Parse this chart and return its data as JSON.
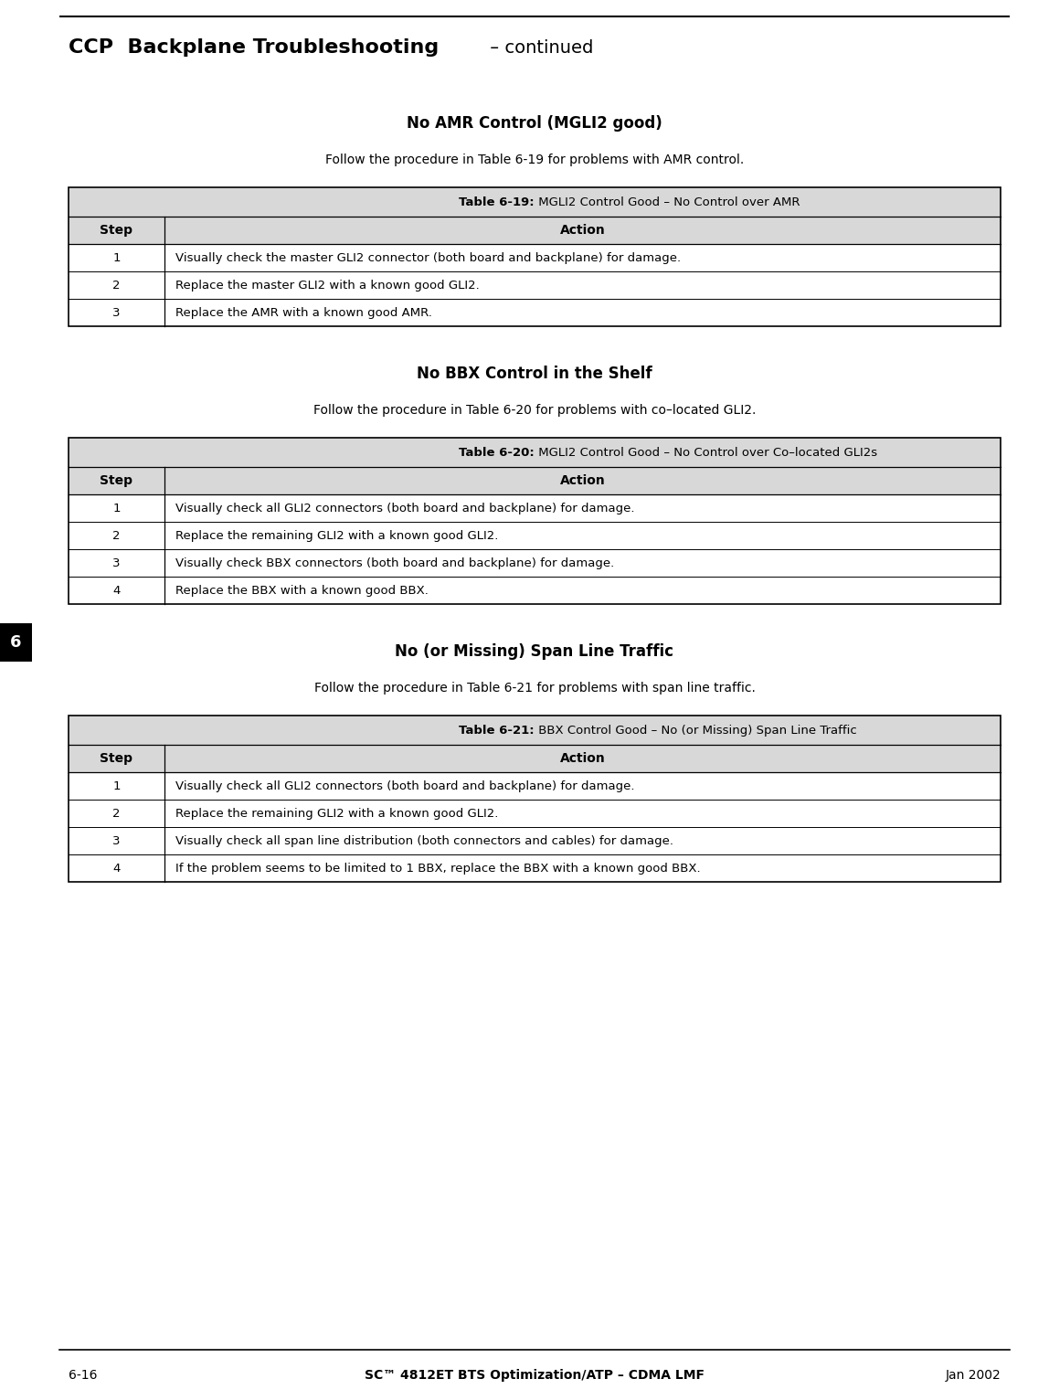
{
  "page_title_bold": "CCP  Backplane Troubleshooting",
  "page_title_normal": " – continued",
  "page_number": "6-16",
  "footer_center": "SC™ 4812ET BTS Optimization/ATP – CDMA LMF",
  "footer_right": "Jan 2002",
  "side_marker_number": "6",
  "section1_title": "No AMR Control (MGLI2 good)",
  "section1_intro": "Follow the procedure in Table 6-19 for problems with AMR control.",
  "table1_title_bold": "Table 6-19:",
  "table1_title_normal": " MGLI2 Control Good – No Control over AMR",
  "table1_col1_header": "Step",
  "table1_col2_header": "Action",
  "table1_rows": [
    [
      "1",
      "Visually check the master GLI2 connector (both board and backplane) for damage."
    ],
    [
      "2",
      "Replace the master GLI2 with a known good GLI2."
    ],
    [
      "3",
      "Replace the AMR with a known good AMR."
    ]
  ],
  "section2_title": "No BBX Control in the Shelf",
  "section2_intro": "Follow the procedure in Table 6-20 for problems with co–located GLI2.",
  "table2_title_bold": "Table 6-20:",
  "table2_title_normal": " MGLI2 Control Good – No Control over Co–located GLI2s",
  "table2_col1_header": "Step",
  "table2_col2_header": "Action",
  "table2_rows": [
    [
      "1",
      "Visually check all GLI2 connectors (both board and backplane) for damage."
    ],
    [
      "2",
      "Replace the remaining GLI2 with a known good GLI2."
    ],
    [
      "3",
      "Visually check BBX connectors (both board and backplane) for damage."
    ],
    [
      "4",
      "Replace the BBX with a known good BBX."
    ]
  ],
  "section3_title": "No (or Missing) Span Line Traffic",
  "section3_intro": "Follow the procedure in Table 6-21 for problems with span line traffic.",
  "table3_title_bold": "Table 6-21:",
  "table3_title_normal": " BBX Control Good – No (or Missing) Span Line Traffic",
  "table3_col1_header": "Step",
  "table3_col2_header": "Action",
  "table3_rows": [
    [
      "1",
      "Visually check all GLI2 connectors (both board and backplane) for damage."
    ],
    [
      "2",
      "Replace the remaining GLI2 with a known good GLI2."
    ],
    [
      "3",
      "Visually check all span line distribution (both connectors and cables) for damage."
    ],
    [
      "4",
      "If the problem seems to be limited to 1 BBX, replace the BBX with a known good BBX."
    ]
  ],
  "bg_color": "#ffffff",
  "text_color": "#000000",
  "table_title_bg": "#d8d8d8",
  "table_header_bg": "#d8d8d8",
  "table_row_bg": "#ffffff"
}
